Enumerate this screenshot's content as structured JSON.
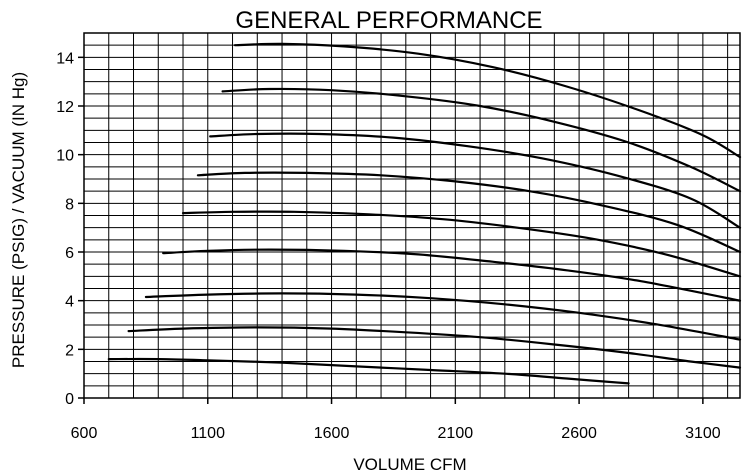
{
  "chart_data": {
    "type": "line",
    "title": "GENERAL PERFORMANCE",
    "xlabel": "VOLUME CFM",
    "ylabel": "PRESSURE (PSIG) / VACUUM (IN Hg)",
    "xlim": [
      600,
      3250
    ],
    "ylim": [
      0,
      15
    ],
    "x_ticks": [
      600,
      1100,
      1600,
      2100,
      2600,
      3100
    ],
    "y_ticks": [
      0,
      2,
      4,
      6,
      8,
      10,
      12,
      14
    ],
    "x_minor_step": 100,
    "y_minor_step": 0.5,
    "grid": true,
    "series": [
      {
        "points": [
          [
            700,
            1.6
          ],
          [
            900,
            1.6
          ],
          [
            1100,
            1.55
          ],
          [
            1400,
            1.45
          ],
          [
            1700,
            1.3
          ],
          [
            2000,
            1.15
          ],
          [
            2300,
            1.0
          ],
          [
            2550,
            0.8
          ],
          [
            2800,
            0.6
          ]
        ]
      },
      {
        "points": [
          [
            780,
            2.75
          ],
          [
            1000,
            2.85
          ],
          [
            1300,
            2.9
          ],
          [
            1600,
            2.85
          ],
          [
            1900,
            2.7
          ],
          [
            2200,
            2.5
          ],
          [
            2500,
            2.2
          ],
          [
            2800,
            1.85
          ],
          [
            3050,
            1.5
          ],
          [
            3250,
            1.25
          ]
        ]
      },
      {
        "points": [
          [
            850,
            4.15
          ],
          [
            1100,
            4.25
          ],
          [
            1400,
            4.3
          ],
          [
            1700,
            4.25
          ],
          [
            2000,
            4.1
          ],
          [
            2300,
            3.85
          ],
          [
            2600,
            3.5
          ],
          [
            2900,
            3.05
          ],
          [
            3250,
            2.4
          ]
        ]
      },
      {
        "points": [
          [
            920,
            5.95
          ],
          [
            1100,
            6.05
          ],
          [
            1350,
            6.1
          ],
          [
            1650,
            6.05
          ],
          [
            1950,
            5.9
          ],
          [
            2250,
            5.6
          ],
          [
            2550,
            5.25
          ],
          [
            2850,
            4.8
          ],
          [
            3250,
            4.0
          ]
        ]
      },
      {
        "points": [
          [
            1000,
            7.6
          ],
          [
            1200,
            7.65
          ],
          [
            1450,
            7.65
          ],
          [
            1750,
            7.55
          ],
          [
            2050,
            7.35
          ],
          [
            2350,
            7.0
          ],
          [
            2650,
            6.55
          ],
          [
            2950,
            5.9
          ],
          [
            3250,
            5.0
          ]
        ]
      },
      {
        "points": [
          [
            1060,
            9.15
          ],
          [
            1250,
            9.25
          ],
          [
            1500,
            9.25
          ],
          [
            1800,
            9.15
          ],
          [
            2100,
            8.9
          ],
          [
            2400,
            8.5
          ],
          [
            2700,
            7.9
          ],
          [
            3000,
            7.1
          ],
          [
            3250,
            6.0
          ]
        ]
      },
      {
        "points": [
          [
            1110,
            10.75
          ],
          [
            1300,
            10.85
          ],
          [
            1550,
            10.85
          ],
          [
            1850,
            10.7
          ],
          [
            2150,
            10.35
          ],
          [
            2450,
            9.85
          ],
          [
            2750,
            9.15
          ],
          [
            3050,
            8.2
          ],
          [
            3250,
            7.0
          ]
        ]
      },
      {
        "points": [
          [
            1160,
            12.6
          ],
          [
            1350,
            12.7
          ],
          [
            1600,
            12.65
          ],
          [
            1900,
            12.4
          ],
          [
            2200,
            12.0
          ],
          [
            2500,
            11.35
          ],
          [
            2800,
            10.5
          ],
          [
            3050,
            9.5
          ],
          [
            3250,
            8.5
          ]
        ]
      },
      {
        "points": [
          [
            1210,
            14.5
          ],
          [
            1400,
            14.55
          ],
          [
            1650,
            14.45
          ],
          [
            1950,
            14.15
          ],
          [
            2250,
            13.6
          ],
          [
            2550,
            12.8
          ],
          [
            2850,
            11.8
          ],
          [
            3100,
            10.8
          ],
          [
            3250,
            9.9
          ]
        ]
      }
    ]
  }
}
